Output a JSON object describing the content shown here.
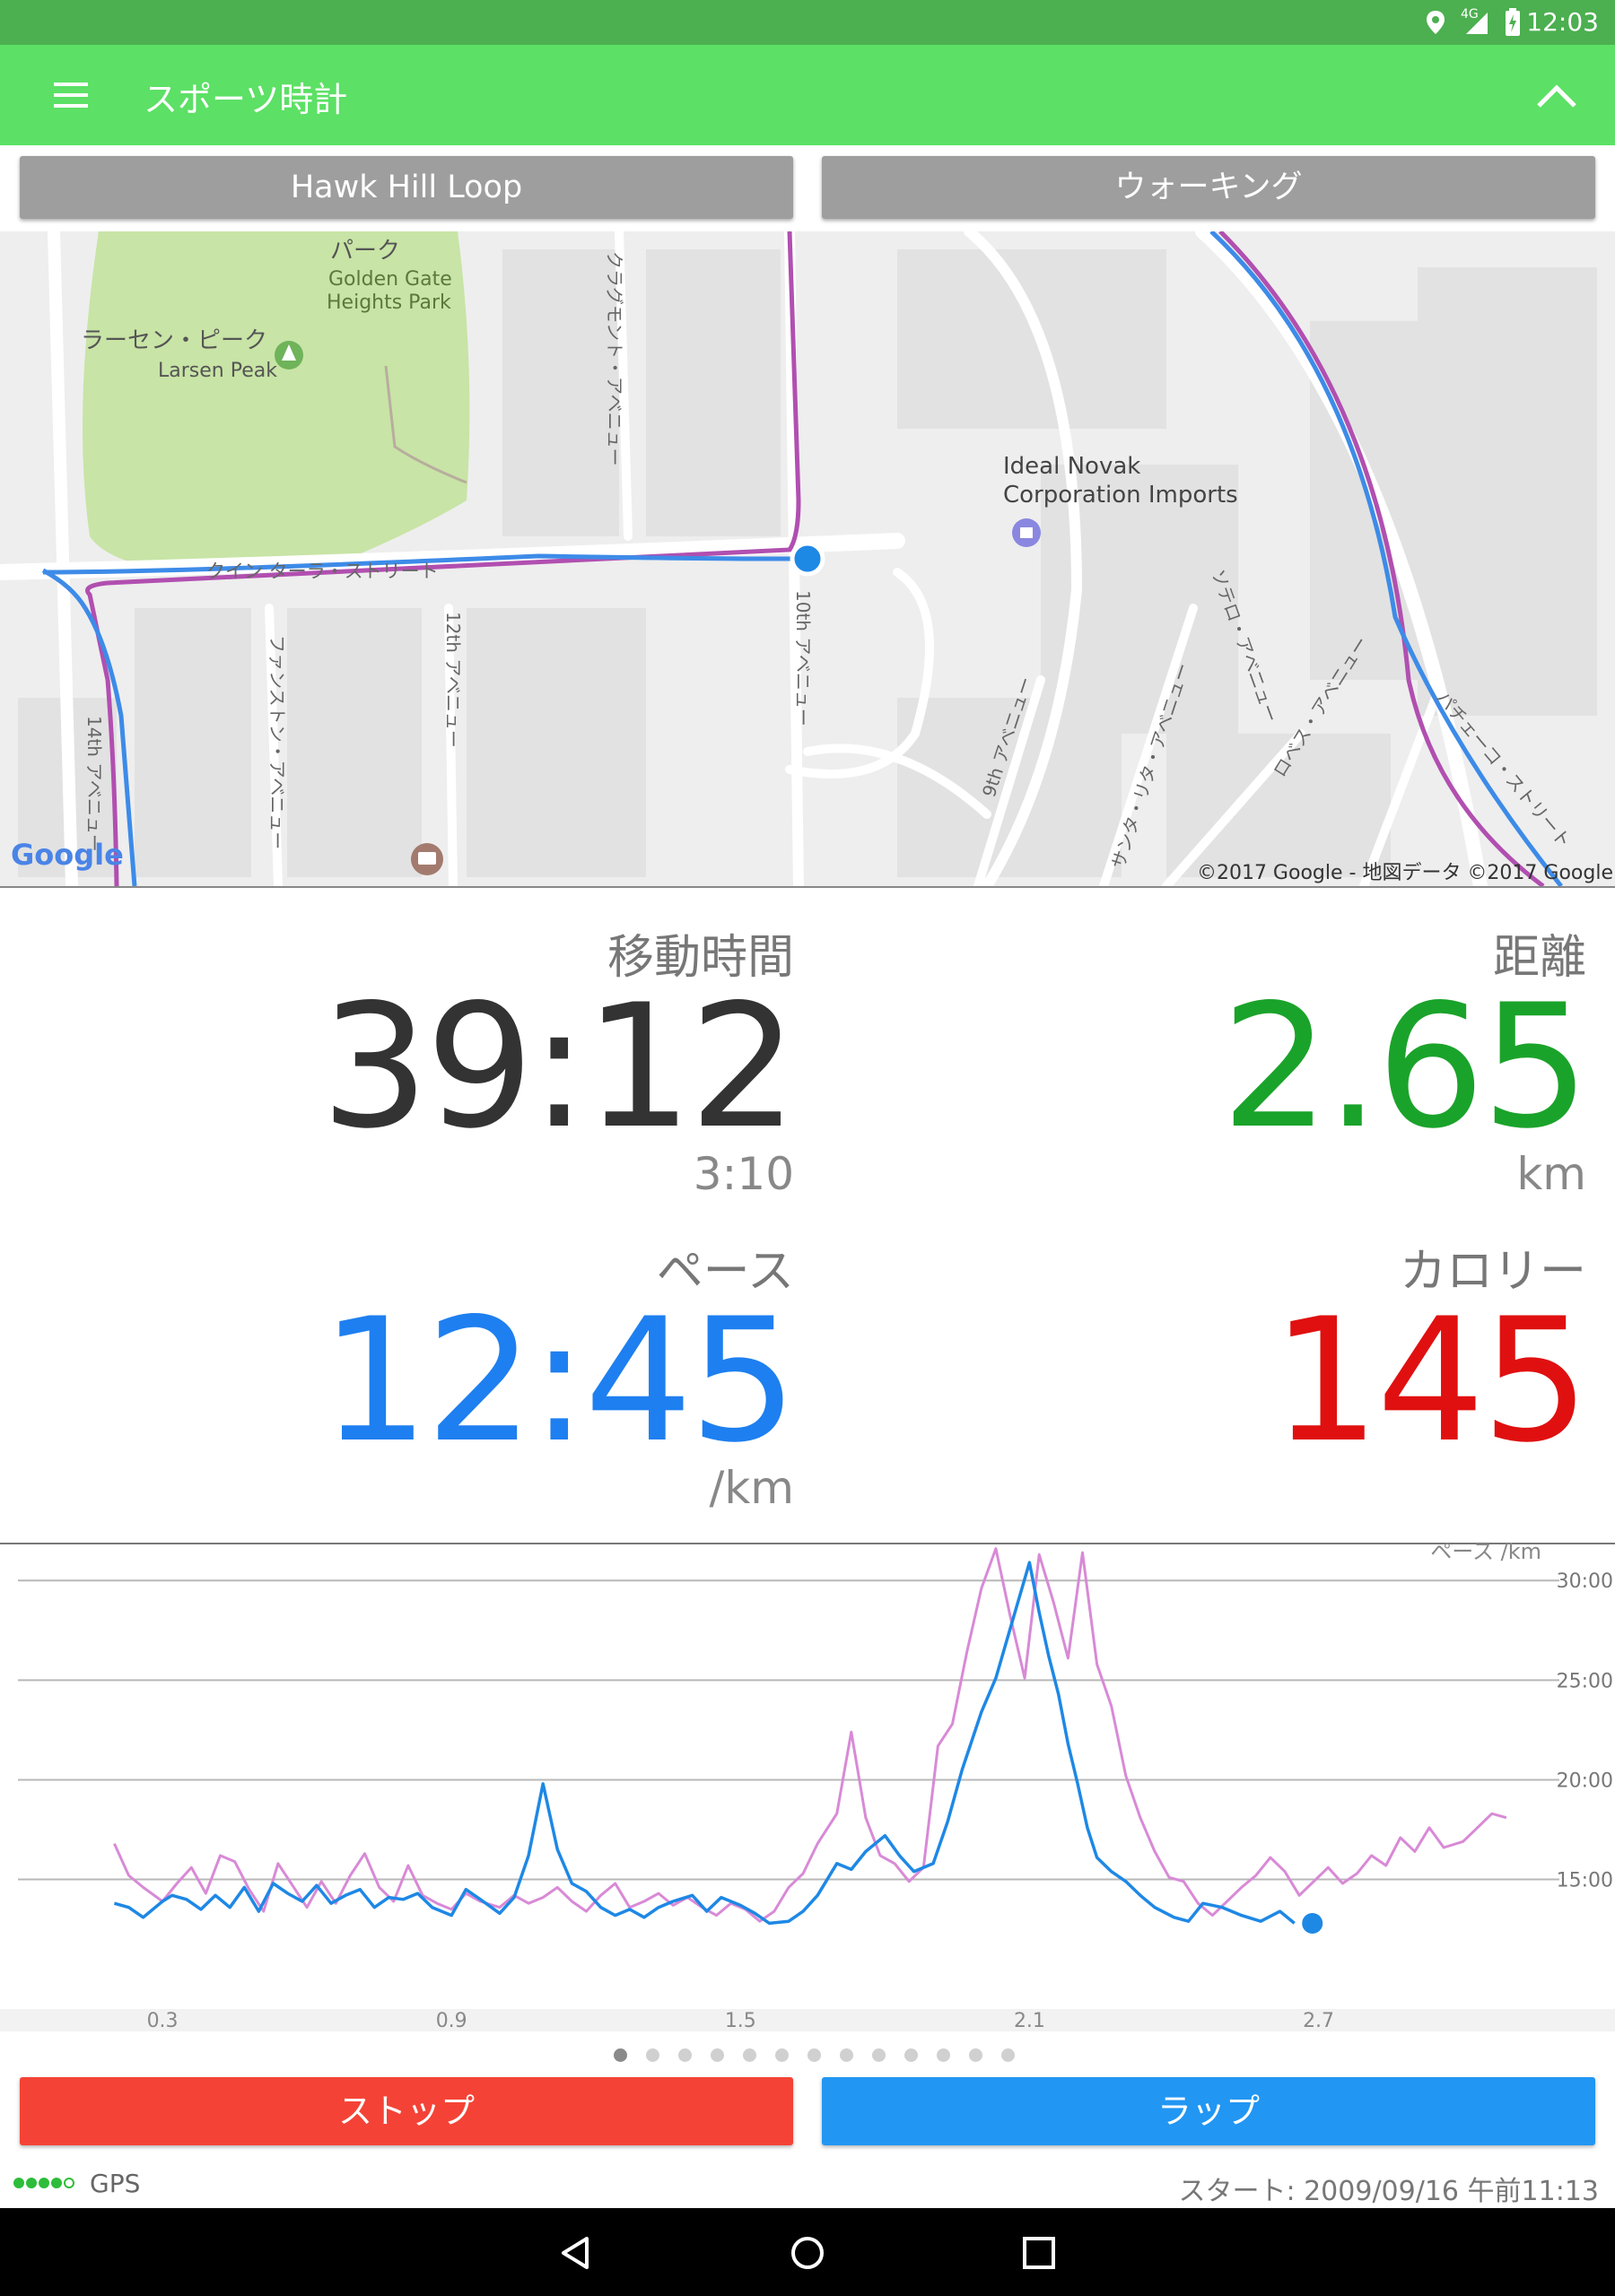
{
  "status_bar": {
    "network": "4G",
    "time": "12:03"
  },
  "app_bar": {
    "title": "スポーツ時計"
  },
  "selectors": {
    "route": "Hawk Hill Loop",
    "activity": "ウォーキング"
  },
  "map": {
    "places": [
      {
        "name": "パーク"
      },
      {
        "name": "Golden Gate"
      },
      {
        "name": "Heights Park"
      },
      {
        "name": "ラーセン・ピーク"
      },
      {
        "name": "Larsen Peak"
      },
      {
        "name": "Ideal Novak"
      },
      {
        "name": "Corporation Imports"
      }
    ],
    "streets": [
      {
        "name": "クイン ターラ・ストリート"
      },
      {
        "name": "クラグモント・アベニュー"
      },
      {
        "name": "ファンストン・アベニュー"
      },
      {
        "name": "12th アベニュー"
      },
      {
        "name": "14th アベニュー"
      },
      {
        "name": "10th アベニュー"
      },
      {
        "name": "9th アベニュー"
      },
      {
        "name": "ソテロ・アベニュー"
      },
      {
        "name": "サンタ・リタ・アベニュー"
      },
      {
        "name": "ロベス・アベニュー"
      },
      {
        "name": "パチェーコ・ストリート"
      }
    ],
    "google_logo": "Google",
    "attribution": "©2017 Google - 地図データ ©2017 Google"
  },
  "stats": {
    "moving_time": {
      "label": "移動時間",
      "value": "39:12",
      "sub": "3:10"
    },
    "distance": {
      "label": "距離",
      "value": "2.65",
      "unit": "km"
    },
    "pace": {
      "label": "ペース",
      "value": "12:45",
      "unit": "/km"
    },
    "calories": {
      "label": "カロリー",
      "value": "145"
    }
  },
  "chart_data": {
    "type": "line",
    "ylabel": "ペース /km",
    "y_ticks": [
      "30:00",
      "25:00",
      "20:00",
      "15:00"
    ],
    "y_tick_values": [
      30,
      25,
      20,
      15
    ],
    "x_ticks": [
      "0.3",
      "0.9",
      "1.5",
      "2.1",
      "2.7"
    ],
    "x_tick_values": [
      0.3,
      0.9,
      1.5,
      2.1,
      2.7
    ],
    "xlim": [
      0.0,
      3.2
    ],
    "ylim": [
      8.5,
      31
    ],
    "colors": {
      "current": "#1e88e5",
      "previous": "#d88ad6"
    },
    "series": [
      {
        "x": [
          0.2,
          0.23,
          0.26,
          0.3,
          0.32,
          0.35,
          0.38,
          0.41,
          0.44,
          0.47,
          0.5,
          0.53,
          0.56,
          0.59,
          0.62,
          0.65,
          0.68,
          0.71,
          0.74,
          0.77,
          0.8,
          0.83,
          0.86,
          0.9,
          0.93,
          0.96,
          1.0,
          1.03,
          1.06,
          1.09,
          1.12,
          1.15,
          1.18,
          1.21,
          1.24,
          1.27,
          1.3,
          1.33,
          1.36,
          1.4,
          1.43,
          1.46,
          1.5,
          1.53,
          1.56,
          1.6,
          1.63,
          1.66,
          1.7,
          1.73,
          1.76,
          1.8,
          1.83,
          1.86,
          1.9,
          1.93,
          1.96,
          2.0,
          2.03,
          2.06,
          2.1,
          2.12,
          2.14,
          2.16,
          2.18,
          2.2,
          2.22,
          2.24,
          2.27,
          2.3,
          2.33,
          2.36,
          2.4,
          2.43,
          2.46,
          2.5,
          2.54,
          2.58,
          2.62,
          2.65
        ],
        "values": [
          13.8,
          13.6,
          13.1,
          13.9,
          14.2,
          14.0,
          13.5,
          14.2,
          13.6,
          14.6,
          13.4,
          14.8,
          14.3,
          13.9,
          14.7,
          13.8,
          14.2,
          14.5,
          13.6,
          14.1,
          14.0,
          14.3,
          13.6,
          13.2,
          14.5,
          14.0,
          13.3,
          14.1,
          16.2,
          19.8,
          16.5,
          14.8,
          14.4,
          13.6,
          13.2,
          13.5,
          13.1,
          13.6,
          13.9,
          14.2,
          13.4,
          14.1,
          13.7,
          13.3,
          12.8,
          12.9,
          13.4,
          14.2,
          15.8,
          15.5,
          16.4,
          17.2,
          16.2,
          15.4,
          15.8,
          17.9,
          20.5,
          23.4,
          25.1,
          27.6,
          30.9,
          28.4,
          26.2,
          24.3,
          21.8,
          19.8,
          17.6,
          16.1,
          15.4,
          14.9,
          14.2,
          13.6,
          13.1,
          12.9,
          13.8,
          13.6,
          13.2,
          12.9,
          13.4,
          12.8
        ]
      },
      {
        "x": [
          0.2,
          0.23,
          0.26,
          0.3,
          0.33,
          0.36,
          0.39,
          0.42,
          0.45,
          0.48,
          0.51,
          0.54,
          0.57,
          0.6,
          0.63,
          0.66,
          0.69,
          0.72,
          0.75,
          0.78,
          0.81,
          0.84,
          0.87,
          0.9,
          0.93,
          0.96,
          1.0,
          1.03,
          1.06,
          1.09,
          1.12,
          1.15,
          1.18,
          1.21,
          1.24,
          1.27,
          1.3,
          1.33,
          1.36,
          1.39,
          1.42,
          1.45,
          1.48,
          1.51,
          1.54,
          1.57,
          1.6,
          1.63,
          1.66,
          1.7,
          1.73,
          1.76,
          1.79,
          1.82,
          1.85,
          1.88,
          1.91,
          1.94,
          1.97,
          2.0,
          2.03,
          2.06,
          2.09,
          2.12,
          2.15,
          2.18,
          2.21,
          2.24,
          2.27,
          2.3,
          2.33,
          2.36,
          2.39,
          2.42,
          2.45,
          2.48,
          2.51,
          2.54,
          2.57,
          2.6,
          2.63,
          2.66,
          2.69,
          2.72,
          2.75,
          2.78,
          2.81,
          2.84,
          2.87,
          2.9,
          2.93,
          2.96,
          3.0,
          3.03,
          3.06,
          3.09
        ],
        "values": [
          16.8,
          15.2,
          14.6,
          13.9,
          14.8,
          15.6,
          14.3,
          16.2,
          15.9,
          14.5,
          13.4,
          15.8,
          14.7,
          13.6,
          14.9,
          13.8,
          15.2,
          16.3,
          14.6,
          13.9,
          15.7,
          14.2,
          13.8,
          13.5,
          14.3,
          13.9,
          13.6,
          14.2,
          13.8,
          14.1,
          14.6,
          13.9,
          13.4,
          14.2,
          14.8,
          13.6,
          13.9,
          14.3,
          13.7,
          14.1,
          13.6,
          13.2,
          13.8,
          13.5,
          12.9,
          13.4,
          14.6,
          15.3,
          16.8,
          18.3,
          22.4,
          18.1,
          16.2,
          15.8,
          14.9,
          15.6,
          21.7,
          22.8,
          26.4,
          29.6,
          31.6,
          28.2,
          25.1,
          31.3,
          28.9,
          26.1,
          31.4,
          25.8,
          23.7,
          20.2,
          18.1,
          16.4,
          15.1,
          14.9,
          13.8,
          13.2,
          13.9,
          14.6,
          15.2,
          16.1,
          15.4,
          14.2,
          14.9,
          15.6,
          14.8,
          15.3,
          16.2,
          15.7,
          17.1,
          16.4,
          17.6,
          16.6,
          16.9,
          17.6,
          18.3,
          18.1
        ]
      }
    ],
    "current_marker": {
      "x": 2.65,
      "y": 12.8
    }
  },
  "pager": {
    "count": 13,
    "active": 0
  },
  "buttons": {
    "stop": "ストップ",
    "lap": "ラップ"
  },
  "footer": {
    "gps": "GPS",
    "start": "スタート: 2009/09/16 午前11:13"
  }
}
